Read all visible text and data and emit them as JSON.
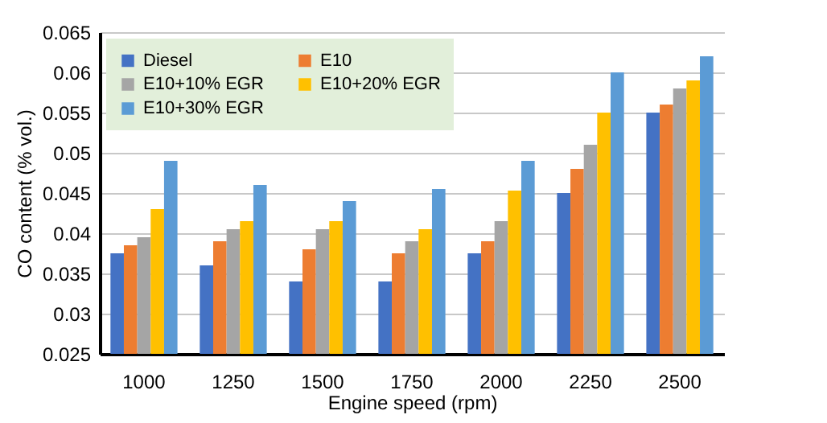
{
  "chart_data": {
    "type": "bar",
    "xlabel": "Engine speed (rpm)",
    "ylabel": "CO content (% vol.)",
    "categories": [
      "1000",
      "1250",
      "1500",
      "1750",
      "2000",
      "2250",
      "2500"
    ],
    "series": [
      {
        "name": "Diesel",
        "color": "#4472c4",
        "values": [
          0.0375,
          0.036,
          0.034,
          0.034,
          0.0375,
          0.045,
          0.055
        ]
      },
      {
        "name": "E10",
        "color": "#ed7d31",
        "values": [
          0.0385,
          0.039,
          0.038,
          0.0375,
          0.039,
          0.048,
          0.056
        ]
      },
      {
        "name": "E10+10% EGR",
        "color": "#a5a5a5",
        "values": [
          0.0395,
          0.0405,
          0.0405,
          0.039,
          0.0415,
          0.051,
          0.058
        ]
      },
      {
        "name": "E10+20% EGR",
        "color": "#ffc000",
        "values": [
          0.043,
          0.0415,
          0.0415,
          0.0405,
          0.0453,
          0.055,
          0.059
        ]
      },
      {
        "name": "E10+30% EGR",
        "color": "#5b9bd5",
        "values": [
          0.049,
          0.046,
          0.044,
          0.0455,
          0.049,
          0.06,
          0.062
        ]
      }
    ],
    "ylim": [
      0.025,
      0.065
    ],
    "yticks": [
      0.025,
      0.03,
      0.035,
      0.04,
      0.045,
      0.05,
      0.055,
      0.06,
      0.065
    ],
    "grid": "y",
    "legend": "top left"
  }
}
